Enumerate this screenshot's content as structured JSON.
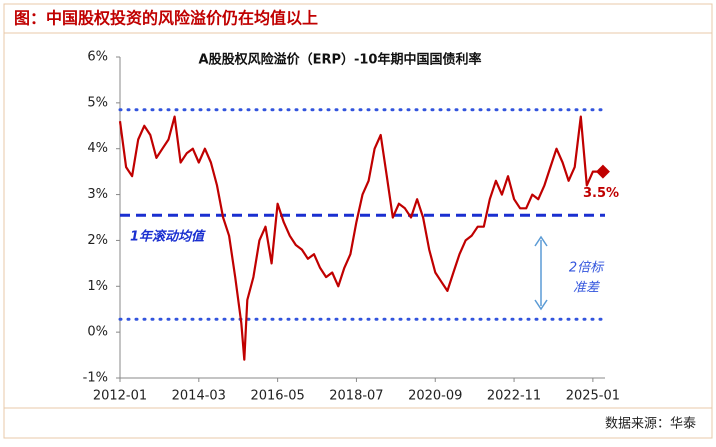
{
  "header": {
    "title": "图：中国股权投资的风险溢价仍在均值以上"
  },
  "footer": {
    "source": "数据来源：华泰"
  },
  "chart_data": {
    "type": "line",
    "title": "A股股权风险溢价（ERP）-10年期中国国债利率",
    "x": [
      "2012-01",
      "2012-03",
      "2012-05",
      "2012-07",
      "2012-09",
      "2012-11",
      "2013-01",
      "2013-03",
      "2013-05",
      "2013-07",
      "2013-09",
      "2013-11",
      "2014-01",
      "2014-03",
      "2014-05",
      "2014-07",
      "2014-09",
      "2014-11",
      "2015-01",
      "2015-03",
      "2015-05",
      "2015-06",
      "2015-07",
      "2015-09",
      "2015-11",
      "2016-01",
      "2016-03",
      "2016-05",
      "2016-07",
      "2016-09",
      "2016-11",
      "2017-01",
      "2017-03",
      "2017-05",
      "2017-07",
      "2017-09",
      "2017-11",
      "2018-01",
      "2018-03",
      "2018-05",
      "2018-07",
      "2018-09",
      "2018-11",
      "2019-01",
      "2019-03",
      "2019-05",
      "2019-07",
      "2019-09",
      "2019-11",
      "2020-01",
      "2020-03",
      "2020-05",
      "2020-07",
      "2020-09",
      "2020-11",
      "2021-01",
      "2021-03",
      "2021-05",
      "2021-07",
      "2021-09",
      "2021-11",
      "2022-01",
      "2022-03",
      "2022-05",
      "2022-07",
      "2022-09",
      "2022-11",
      "2023-01",
      "2023-03",
      "2023-05",
      "2023-07",
      "2023-09",
      "2023-11",
      "2024-01",
      "2024-03",
      "2024-05",
      "2024-07",
      "2024-09",
      "2024-11",
      "2025-01",
      "2025-03"
    ],
    "series": [
      {
        "color": "#c00000",
        "values": [
          4.6,
          3.6,
          3.4,
          4.2,
          4.5,
          4.3,
          3.8,
          4.0,
          4.2,
          4.7,
          3.7,
          3.9,
          4.0,
          3.7,
          4.0,
          3.7,
          3.2,
          2.5,
          2.1,
          1.2,
          0.2,
          -0.6,
          0.7,
          1.2,
          2.0,
          2.3,
          1.5,
          2.8,
          2.4,
          2.1,
          1.9,
          1.8,
          1.6,
          1.7,
          1.4,
          1.2,
          1.3,
          1.0,
          1.4,
          1.7,
          2.4,
          3.0,
          3.3,
          4.0,
          4.3,
          3.4,
          2.5,
          2.8,
          2.7,
          2.5,
          2.9,
          2.5,
          1.8,
          1.3,
          1.1,
          0.9,
          1.3,
          1.7,
          2.0,
          2.1,
          2.3,
          2.3,
          2.9,
          3.3,
          3.0,
          3.4,
          2.9,
          2.7,
          2.7,
          3.0,
          2.9,
          3.2,
          3.6,
          4.0,
          3.7,
          3.3,
          3.6,
          4.7,
          3.2,
          3.5,
          3.5
        ]
      }
    ],
    "xlim": [
      "2012-01",
      "2025-05"
    ],
    "xticks": [
      "2012-01",
      "2014-03",
      "2016-05",
      "2018-07",
      "2020-09",
      "2022-11",
      "2025-01"
    ],
    "ylim": [
      -1,
      6
    ],
    "yticks": [
      {
        "value": 6,
        "label": "6%"
      },
      {
        "value": 5,
        "label": "5%"
      },
      {
        "value": 4,
        "label": "4%"
      },
      {
        "value": 3,
        "label": "3%"
      },
      {
        "value": 2,
        "label": "2%"
      },
      {
        "value": 1,
        "label": "1%"
      },
      {
        "value": 0,
        "label": "0%"
      },
      {
        "value": -1,
        "label": "-1%"
      }
    ],
    "hlines": [
      {
        "value": 4.85,
        "style": "dotted",
        "color": "#3355dd"
      },
      {
        "value": 2.55,
        "style": "dashed",
        "color": "#1a2fd0"
      },
      {
        "value": 0.28,
        "style": "dotted",
        "color": "#3355dd"
      }
    ],
    "annotations": [
      {
        "text": "1年滚动均值"
      },
      {
        "lines": [
          "2倍标",
          "准差"
        ]
      },
      {
        "value": 3.5,
        "label": "3.5%"
      }
    ]
  }
}
